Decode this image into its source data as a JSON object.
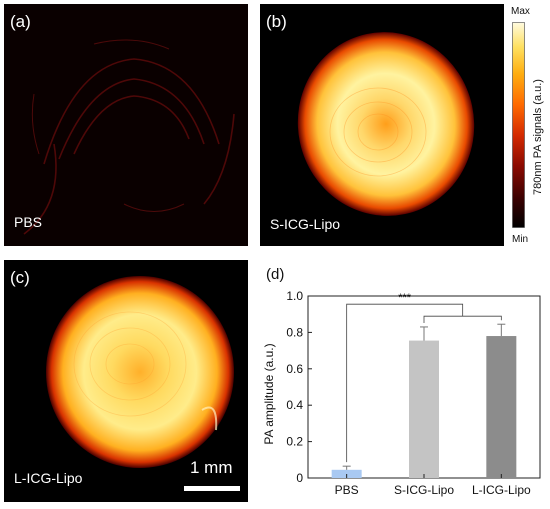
{
  "panels": {
    "a": {
      "label": "(a)",
      "tag": "PBS"
    },
    "b": {
      "label": "(b)",
      "tag": "S-ICG-Lipo"
    },
    "c": {
      "label": "(c)",
      "tag": "L-ICG-Lipo",
      "scalebar_text": "1 mm"
    },
    "d": {
      "label": "(d)"
    }
  },
  "colorbar": {
    "max_label": "Max",
    "min_label": "Min",
    "title": "780nm PA signals (a.u.)",
    "colors": [
      "#000000",
      "#3a0000",
      "#8b0a00",
      "#d42a00",
      "#ff6a00",
      "#ffae10",
      "#ffe060",
      "#fffbe0"
    ]
  },
  "chart_data": {
    "type": "bar",
    "categories": [
      "PBS",
      "S-ICG-Lipo",
      "L-ICG-Lipo"
    ],
    "values": [
      0.045,
      0.755,
      0.78
    ],
    "errors": [
      0.02,
      0.075,
      0.065
    ],
    "colors": [
      "#a9c9f2",
      "#c4c4c4",
      "#8c8c8c"
    ],
    "ylabel": "PA amplitude (a.u.)",
    "ylim": [
      0,
      1.0
    ],
    "yticks": [
      "0",
      "0.2",
      "0.4",
      "0.6",
      "0.8",
      "1.0"
    ],
    "significance": "***"
  }
}
